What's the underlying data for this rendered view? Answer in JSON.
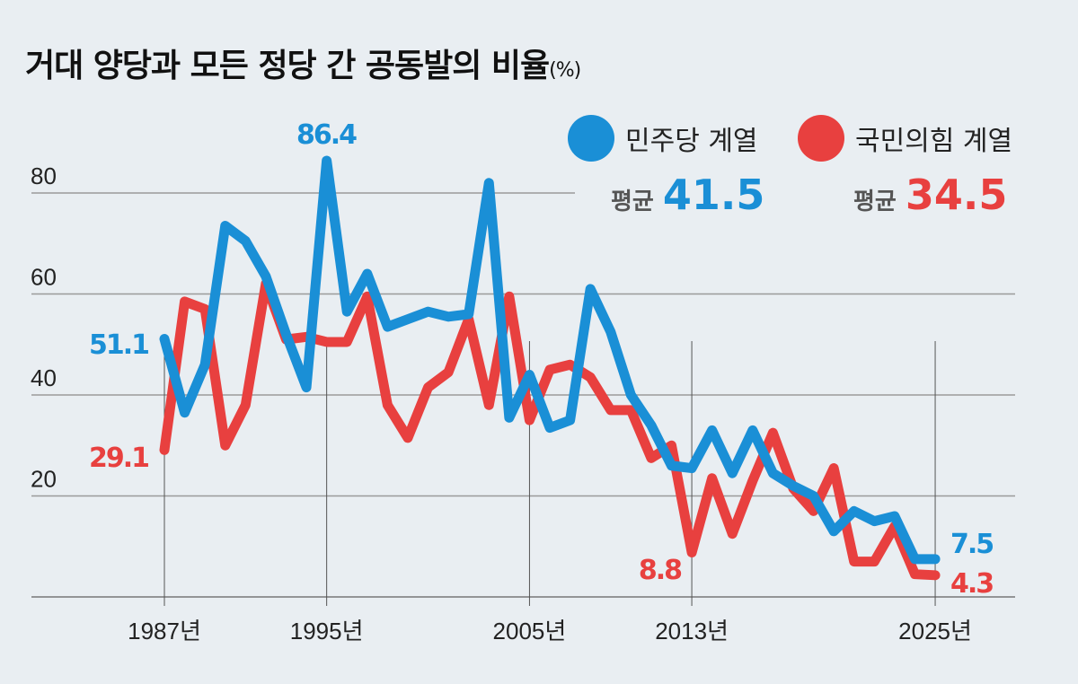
{
  "chart_data": {
    "type": "line",
    "title": "거대 양당과 모든 정당 간 공동발의 비율",
    "unit": "(%)",
    "x": [
      1987,
      1988,
      1989,
      1990,
      1991,
      1992,
      1993,
      1994,
      1995,
      1996,
      1997,
      1998,
      1999,
      2000,
      2001,
      2002,
      2003,
      2004,
      2005,
      2006,
      2007,
      2008,
      2009,
      2010,
      2011,
      2012,
      2013,
      2014,
      2015,
      2016,
      2017,
      2018,
      2019,
      2020,
      2021,
      2022,
      2023,
      2024,
      2025
    ],
    "x_tick_labels": [
      {
        "year": 1987,
        "label": "1987년"
      },
      {
        "year": 1995,
        "label": "1995년"
      },
      {
        "year": 2005,
        "label": "2005년"
      },
      {
        "year": 2013,
        "label": "2013년"
      },
      {
        "year": 2025,
        "label": "2025년"
      }
    ],
    "y_ticks": [
      20,
      40,
      60,
      80
    ],
    "ylim": [
      0,
      90
    ],
    "grid": true,
    "legend_position": "top-right",
    "series": [
      {
        "name": "민주당 계열",
        "color": "#1a8fd6",
        "average_label": "평균",
        "average": "41.5",
        "values": [
          51.1,
          36.5,
          46,
          73.5,
          70.5,
          63.5,
          52,
          41.5,
          86.4,
          56.5,
          64,
          53.5,
          55,
          56.5,
          55.5,
          56,
          82,
          35.5,
          44,
          33.5,
          35,
          61,
          52.5,
          40,
          34,
          26,
          25.5,
          33,
          24.5,
          33,
          24.5,
          22,
          20,
          13,
          17,
          15,
          16,
          7.5,
          7.5
        ]
      },
      {
        "name": "국민의힘 계열",
        "color": "#e8403f",
        "average_label": "평균",
        "average": "34.5",
        "values": [
          29.1,
          58.5,
          57,
          30,
          38,
          62,
          51,
          51.5,
          50.5,
          50.5,
          59.5,
          38,
          31.5,
          41.5,
          44.5,
          55,
          38,
          59.5,
          35,
          45,
          46,
          43.5,
          37,
          37,
          27.5,
          30,
          8.8,
          23.5,
          12.5,
          23,
          32.5,
          21.5,
          17,
          25.5,
          7,
          7,
          14,
          4.5,
          4.3
        ]
      }
    ],
    "annotations": [
      {
        "series": 0,
        "year": 1987,
        "text": "51.1"
      },
      {
        "series": 1,
        "year": 1987,
        "text": "29.1"
      },
      {
        "series": 0,
        "year": 1995,
        "text": "86.4"
      },
      {
        "series": 1,
        "year": 2013,
        "text": "8.8"
      },
      {
        "series": 0,
        "year": 2025,
        "text": "7.5"
      },
      {
        "series": 1,
        "year": 2025,
        "text": "4.3"
      }
    ]
  }
}
